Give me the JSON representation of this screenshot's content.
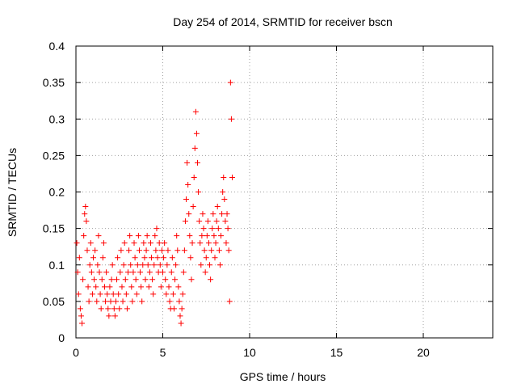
{
  "chart_data": {
    "type": "scatter",
    "title": "Day 254 of 2014, SRMTID for receiver bscn",
    "xlabel": "GPS time / hours",
    "ylabel": "SRMTID / TECUs",
    "xlim": [
      0,
      24
    ],
    "ylim": [
      0,
      0.4
    ],
    "grid": true,
    "marker": "+",
    "color": "#ff0000",
    "x_ticks": [
      0,
      5,
      10,
      15,
      20
    ],
    "x_tick_labels": [
      "0",
      "5",
      "10",
      "15",
      "20"
    ],
    "y_ticks": [
      0,
      0.05,
      0.1,
      0.15,
      0.2,
      0.25,
      0.3,
      0.35,
      0.4
    ],
    "y_tick_labels": [
      "0",
      "0.05",
      "0.1",
      "0.15",
      "0.2",
      "0.25",
      "0.3",
      "0.35",
      "0.4"
    ],
    "series": [
      {
        "name": "SRMTID",
        "points": [
          [
            0.05,
            0.13
          ],
          [
            0.1,
            0.09
          ],
          [
            0.15,
            0.06
          ],
          [
            0.2,
            0.11
          ],
          [
            0.25,
            0.04
          ],
          [
            0.3,
            0.03
          ],
          [
            0.35,
            0.02
          ],
          [
            0.4,
            0.08
          ],
          [
            0.45,
            0.14
          ],
          [
            0.5,
            0.17
          ],
          [
            0.55,
            0.18
          ],
          [
            0.6,
            0.16
          ],
          [
            0.65,
            0.12
          ],
          [
            0.7,
            0.07
          ],
          [
            0.75,
            0.05
          ],
          [
            0.8,
            0.1
          ],
          [
            0.85,
            0.13
          ],
          [
            0.9,
            0.09
          ],
          [
            0.95,
            0.06
          ],
          [
            1.0,
            0.11
          ],
          [
            1.05,
            0.08
          ],
          [
            1.1,
            0.12
          ],
          [
            1.15,
            0.07
          ],
          [
            1.2,
            0.05
          ],
          [
            1.25,
            0.1
          ],
          [
            1.3,
            0.14
          ],
          [
            1.35,
            0.09
          ],
          [
            1.4,
            0.06
          ],
          [
            1.45,
            0.04
          ],
          [
            1.5,
            0.08
          ],
          [
            1.55,
            0.11
          ],
          [
            1.6,
            0.13
          ],
          [
            1.65,
            0.07
          ],
          [
            1.7,
            0.05
          ],
          [
            1.75,
            0.09
          ],
          [
            1.8,
            0.06
          ],
          [
            1.85,
            0.04
          ],
          [
            1.9,
            0.03
          ],
          [
            1.95,
            0.07
          ],
          [
            2.0,
            0.05
          ],
          [
            2.05,
            0.08
          ],
          [
            2.1,
            0.1
          ],
          [
            2.15,
            0.06
          ],
          [
            2.2,
            0.04
          ],
          [
            2.25,
            0.03
          ],
          [
            2.3,
            0.05
          ],
          [
            2.35,
            0.08
          ],
          [
            2.4,
            0.11
          ],
          [
            2.45,
            0.06
          ],
          [
            2.5,
            0.04
          ],
          [
            2.55,
            0.09
          ],
          [
            2.6,
            0.12
          ],
          [
            2.65,
            0.07
          ],
          [
            2.7,
            0.05
          ],
          [
            2.75,
            0.1
          ],
          [
            2.8,
            0.13
          ],
          [
            2.85,
            0.08
          ],
          [
            2.9,
            0.06
          ],
          [
            2.95,
            0.04
          ],
          [
            3.0,
            0.09
          ],
          [
            3.05,
            0.12
          ],
          [
            3.1,
            0.14
          ],
          [
            3.15,
            0.1
          ],
          [
            3.2,
            0.07
          ],
          [
            3.25,
            0.05
          ],
          [
            3.3,
            0.09
          ],
          [
            3.35,
            0.13
          ],
          [
            3.4,
            0.11
          ],
          [
            3.45,
            0.08
          ],
          [
            3.5,
            0.06
          ],
          [
            3.55,
            0.1
          ],
          [
            3.6,
            0.14
          ],
          [
            3.65,
            0.12
          ],
          [
            3.7,
            0.09
          ],
          [
            3.75,
            0.07
          ],
          [
            3.8,
            0.05
          ],
          [
            3.85,
            0.1
          ],
          [
            3.9,
            0.13
          ],
          [
            3.95,
            0.11
          ],
          [
            4.0,
            0.08
          ],
          [
            4.05,
            0.12
          ],
          [
            4.1,
            0.14
          ],
          [
            4.15,
            0.1
          ],
          [
            4.2,
            0.07
          ],
          [
            4.25,
            0.09
          ],
          [
            4.3,
            0.13
          ],
          [
            4.35,
            0.11
          ],
          [
            4.4,
            0.08
          ],
          [
            4.45,
            0.06
          ],
          [
            4.5,
            0.1
          ],
          [
            4.55,
            0.14
          ],
          [
            4.6,
            0.12
          ],
          [
            4.65,
            0.15
          ],
          [
            4.7,
            0.11
          ],
          [
            4.75,
            0.09
          ],
          [
            4.8,
            0.13
          ],
          [
            4.85,
            0.1
          ],
          [
            4.9,
            0.07
          ],
          [
            4.95,
            0.12
          ],
          [
            5.0,
            0.09
          ],
          [
            5.05,
            0.11
          ],
          [
            5.1,
            0.13
          ],
          [
            5.15,
            0.08
          ],
          [
            5.2,
            0.06
          ],
          [
            5.25,
            0.1
          ],
          [
            5.3,
            0.12
          ],
          [
            5.35,
            0.07
          ],
          [
            5.4,
            0.05
          ],
          [
            5.45,
            0.04
          ],
          [
            5.5,
            0.09
          ],
          [
            5.55,
            0.11
          ],
          [
            5.6,
            0.06
          ],
          [
            5.65,
            0.04
          ],
          [
            5.7,
            0.08
          ],
          [
            5.75,
            0.1
          ],
          [
            5.8,
            0.14
          ],
          [
            5.85,
            0.12
          ],
          [
            5.9,
            0.07
          ],
          [
            5.95,
            0.05
          ],
          [
            6.0,
            0.03
          ],
          [
            6.05,
            0.02
          ],
          [
            6.1,
            0.04
          ],
          [
            6.15,
            0.06
          ],
          [
            6.2,
            0.09
          ],
          [
            6.25,
            0.12
          ],
          [
            6.3,
            0.16
          ],
          [
            6.35,
            0.19
          ],
          [
            6.4,
            0.24
          ],
          [
            6.45,
            0.21
          ],
          [
            6.5,
            0.17
          ],
          [
            6.55,
            0.14
          ],
          [
            6.6,
            0.11
          ],
          [
            6.65,
            0.08
          ],
          [
            6.7,
            0.13
          ],
          [
            6.75,
            0.18
          ],
          [
            6.8,
            0.22
          ],
          [
            6.85,
            0.26
          ],
          [
            6.9,
            0.31
          ],
          [
            6.95,
            0.28
          ],
          [
            7.0,
            0.24
          ],
          [
            7.05,
            0.2
          ],
          [
            7.1,
            0.16
          ],
          [
            7.15,
            0.13
          ],
          [
            7.2,
            0.1
          ],
          [
            7.25,
            0.14
          ],
          [
            7.3,
            0.17
          ],
          [
            7.35,
            0.15
          ],
          [
            7.4,
            0.12
          ],
          [
            7.45,
            0.09
          ],
          [
            7.5,
            0.11
          ],
          [
            7.55,
            0.14
          ],
          [
            7.6,
            0.16
          ],
          [
            7.65,
            0.13
          ],
          [
            7.7,
            0.1
          ],
          [
            7.75,
            0.08
          ],
          [
            7.8,
            0.12
          ],
          [
            7.85,
            0.15
          ],
          [
            7.9,
            0.17
          ],
          [
            7.95,
            0.14
          ],
          [
            8.0,
            0.11
          ],
          [
            8.05,
            0.13
          ],
          [
            8.1,
            0.16
          ],
          [
            8.15,
            0.18
          ],
          [
            8.2,
            0.15
          ],
          [
            8.25,
            0.12
          ],
          [
            8.3,
            0.1
          ],
          [
            8.35,
            0.14
          ],
          [
            8.4,
            0.17
          ],
          [
            8.45,
            0.2
          ],
          [
            8.5,
            0.22
          ],
          [
            8.55,
            0.19
          ],
          [
            8.6,
            0.16
          ],
          [
            8.65,
            0.13
          ],
          [
            8.7,
            0.17
          ],
          [
            8.75,
            0.15
          ],
          [
            8.8,
            0.12
          ],
          [
            8.85,
            0.05
          ],
          [
            8.9,
            0.35
          ],
          [
            8.95,
            0.3
          ],
          [
            9.0,
            0.22
          ]
        ]
      }
    ]
  }
}
